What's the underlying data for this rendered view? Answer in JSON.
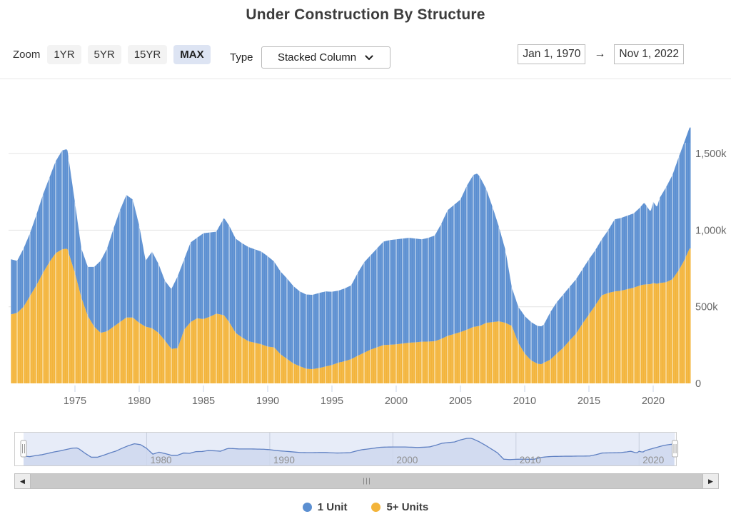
{
  "title": "Under Construction By Structure",
  "toolbar": {
    "zoom_label": "Zoom",
    "zoom_options": [
      "1YR",
      "5YR",
      "15YR",
      "MAX"
    ],
    "zoom_selected": "MAX",
    "type_label": "Type",
    "type_value": "Stacked Column",
    "date_from": "Jan 1, 1970",
    "date_arrow": "→",
    "date_to": "Nov 1, 2022"
  },
  "chart_data": {
    "type": "bar",
    "stacking": "stacked-column",
    "title": "Under Construction By Structure",
    "values_unit": "thousands of housing units (k)",
    "x_start": 1970.0,
    "x_end": 2022.9167,
    "x": [
      1970.0,
      1970.5,
      1971.0,
      1971.5,
      1972.0,
      1972.5,
      1973.0,
      1973.5,
      1974.0,
      1974.4,
      1975.0,
      1975.5,
      1976.0,
      1976.5,
      1977.0,
      1977.5,
      1978.0,
      1978.5,
      1979.0,
      1979.5,
      1980.0,
      1980.5,
      1981.0,
      1981.5,
      1982.0,
      1982.5,
      1983.0,
      1983.5,
      1984.0,
      1984.5,
      1985.0,
      1985.5,
      1986.0,
      1986.6,
      1987.0,
      1987.5,
      1988.0,
      1988.5,
      1989.0,
      1989.5,
      1990.0,
      1990.5,
      1991.0,
      1991.5,
      1992.0,
      1992.5,
      1993.0,
      1993.5,
      1994.0,
      1994.5,
      1995.0,
      1995.5,
      1996.0,
      1996.5,
      1997.0,
      1997.5,
      1998.0,
      1998.5,
      1999.0,
      1999.5,
      2000.0,
      2000.5,
      2001.0,
      2001.5,
      2002.0,
      2002.5,
      2003.0,
      2003.5,
      2004.0,
      2004.5,
      2005.0,
      2005.5,
      2006.0,
      2006.3,
      2006.5,
      2007.0,
      2007.5,
      2008.0,
      2008.5,
      2009.0,
      2009.5,
      2010.0,
      2010.5,
      2011.0,
      2011.3,
      2011.5,
      2012.0,
      2012.5,
      2013.0,
      2013.5,
      2014.0,
      2014.5,
      2015.0,
      2015.5,
      2016.0,
      2016.5,
      2017.0,
      2017.5,
      2018.0,
      2018.5,
      2019.0,
      2019.3,
      2019.8,
      2020.0,
      2020.3,
      2020.5,
      2021.0,
      2021.5,
      2022.0,
      2022.4,
      2022.83
    ],
    "series": [
      {
        "name": "1 Unit",
        "color": "#5B8FD1",
        "values": [
          360,
          340,
          380,
          410,
          460,
          510,
          550,
          600,
          645,
          650,
          460,
          320,
          320,
          390,
          470,
          540,
          640,
          730,
          800,
          770,
          635,
          430,
          500,
          450,
          390,
          390,
          470,
          460,
          520,
          525,
          560,
          550,
          535,
          635,
          630,
          615,
          615,
          615,
          610,
          605,
          590,
          560,
          540,
          525,
          505,
          488,
          485,
          485,
          490,
          490,
          478,
          470,
          475,
          482,
          540,
          590,
          615,
          645,
          675,
          683,
          685,
          685,
          685,
          677,
          668,
          677,
          690,
          750,
          820,
          843,
          865,
          940,
          992,
          998,
          975,
          875,
          750,
          615,
          475,
          250,
          235,
          245,
          250,
          247,
          247,
          250,
          310,
          335,
          348,
          350,
          355,
          355,
          360,
          360,
          365,
          410,
          470,
          475,
          480,
          485,
          510,
          535,
          472,
          530,
          500,
          555,
          620,
          680,
          740,
          770,
          790
        ]
      },
      {
        "name": "5+ Units",
        "color": "#F3B43A",
        "values": [
          450,
          460,
          500,
          570,
          640,
          720,
          790,
          850,
          875,
          880,
          720,
          560,
          440,
          370,
          330,
          340,
          370,
          400,
          430,
          430,
          395,
          370,
          360,
          330,
          280,
          225,
          230,
          350,
          400,
          425,
          420,
          435,
          455,
          445,
          400,
          330,
          300,
          275,
          265,
          255,
          240,
          235,
          190,
          160,
          130,
          112,
          95,
          93,
          100,
          110,
          120,
          135,
          145,
          158,
          180,
          200,
          220,
          235,
          250,
          252,
          255,
          260,
          265,
          268,
          272,
          273,
          275,
          290,
          310,
          322,
          335,
          350,
          368,
          372,
          375,
          395,
          400,
          405,
          395,
          375,
          265,
          195,
          150,
          128,
          125,
          135,
          155,
          195,
          232,
          280,
          325,
          390,
          450,
          510,
          575,
          590,
          600,
          605,
          615,
          625,
          640,
          645,
          648,
          655,
          650,
          655,
          660,
          680,
          740,
          800,
          880
        ]
      }
    ],
    "y_axis": {
      "ticks": [
        0,
        500,
        1000,
        1500
      ],
      "tick_labels": [
        "0",
        "500k",
        "1,000k",
        "1,500k"
      ],
      "max": 1700,
      "position": "right"
    },
    "x_axis": {
      "ticks": [
        1975,
        1980,
        1985,
        1990,
        1995,
        2000,
        2005,
        2010,
        2015,
        2020
      ],
      "labels": [
        "1975",
        "1980",
        "1985",
        "1990",
        "1995",
        "2000",
        "2005",
        "2010",
        "2015",
        "2020"
      ]
    },
    "legend": {
      "position": "bottom",
      "entries": [
        "1 Unit",
        "5+ Units"
      ]
    },
    "navigator": {
      "shows_series": "1 Unit",
      "ticks": [
        1980,
        1990,
        2000,
        2010,
        2020
      ],
      "labels": [
        "1980",
        "1990",
        "2000",
        "2010",
        "2020"
      ]
    }
  },
  "colors": {
    "blue_series": "#5B8FD1",
    "yellow_series": "#F3B43A",
    "gridline": "#e3e3e3",
    "axis_text": "#666666",
    "nav_background": "#e7ecf8",
    "nav_fill": "#cdd7ee",
    "nav_line": "#5f80c2",
    "nav_label": "#8f8f8f",
    "zoom_selected_bg": "#dde4f3"
  },
  "scrollbar": {
    "left_arrow": "◀",
    "right_arrow": "▶"
  }
}
